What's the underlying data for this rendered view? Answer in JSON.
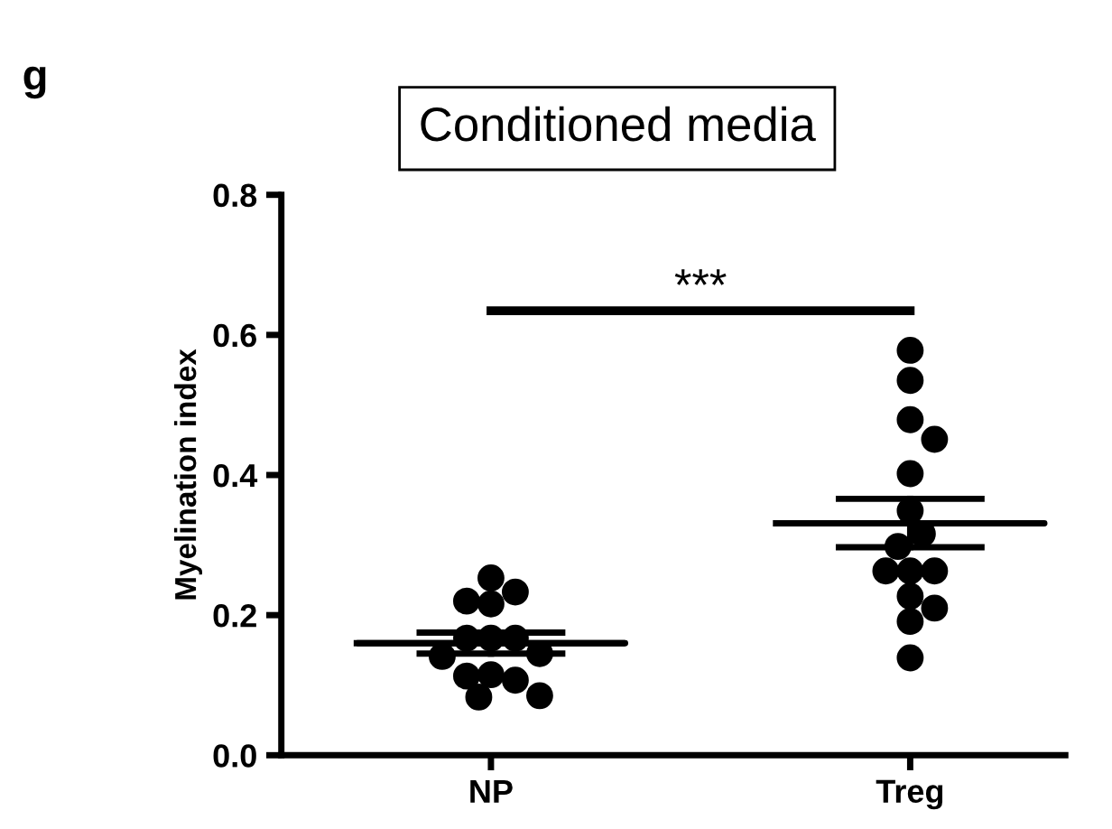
{
  "chart_data": {
    "type": "scatter",
    "title": "Conditioned media",
    "ylabel": "Myelination index",
    "annotations": [
      "g",
      "***"
    ],
    "categories": [
      "NP",
      "Treg"
    ],
    "ylim": [
      0,
      0.8
    ],
    "yticks": [
      {
        "value": 0,
        "label": "0.0"
      },
      {
        "value": 0.2,
        "label": "0.2"
      },
      {
        "value": 0.4,
        "label": "0.4"
      },
      {
        "value": 0.6,
        "label": "0.6"
      },
      {
        "value": 0.8,
        "label": "0.8"
      }
    ],
    "marker": "circle",
    "series": [
      {
        "color": "#000000",
        "x": [
          "NP",
          "NP",
          "NP",
          "NP",
          "NP",
          "NP",
          "NP",
          "NP",
          "NP",
          "NP",
          "NP",
          "NP",
          "NP",
          "NP"
        ],
        "values": [
          0.253,
          0.233,
          0.216,
          0.22,
          0.167,
          0.167,
          0.167,
          0.145,
          0.141,
          0.115,
          0.107,
          0.113,
          0.083,
          0.085
        ]
      },
      {
        "color": "#000000",
        "x": [
          "Treg",
          "Treg",
          "Treg",
          "Treg",
          "Treg",
          "Treg",
          "Treg",
          "Treg",
          "Treg",
          "Treg",
          "Treg",
          "Treg",
          "Treg",
          "Treg",
          "Treg"
        ],
        "values": [
          0.578,
          0.535,
          0.479,
          0.451,
          0.402,
          0.349,
          0.316,
          0.298,
          0.263,
          0.263,
          0.263,
          0.227,
          0.21,
          0.191,
          0.139
        ]
      },
      {
        "type": "box",
        "color": "#000000",
        "boxes": [
          {
            "low": 0.145,
            "q1": 0.16,
            "median": 0.16,
            "q3": 0.16,
            "high": 0.175
          },
          {
            "low": 0.297,
            "q1": 0.331,
            "median": 0.331,
            "q3": 0.331,
            "high": 0.366
          }
        ]
      }
    ]
  }
}
